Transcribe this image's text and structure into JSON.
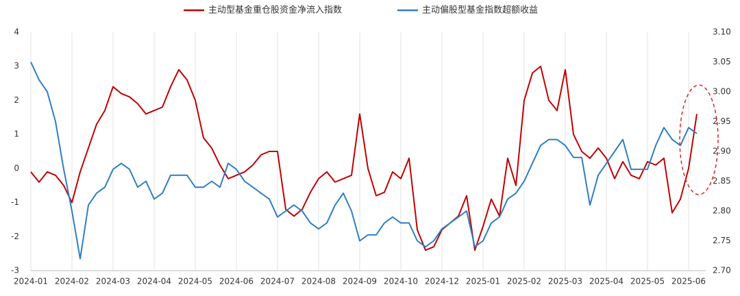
{
  "chart_data": {
    "type": "line",
    "categories": [
      "2024-01",
      null,
      null,
      null,
      null,
      "2024-02",
      null,
      null,
      null,
      null,
      "2024-03",
      null,
      null,
      null,
      null,
      "2024-04",
      null,
      null,
      null,
      null,
      "2024-05",
      null,
      null,
      null,
      null,
      "2024-06",
      null,
      null,
      null,
      null,
      "2024-07",
      null,
      null,
      null,
      null,
      "2024-08",
      null,
      null,
      null,
      null,
      "2024-09",
      null,
      null,
      null,
      null,
      "2024-10",
      null,
      null,
      null,
      null,
      "2024-12",
      null,
      null,
      null,
      null,
      "2025-01",
      null,
      null,
      null,
      null,
      "2025-02",
      null,
      null,
      null,
      null,
      "2025-03",
      null,
      null,
      null,
      null,
      "2025-04",
      null,
      null,
      null,
      null,
      "2025-05",
      null,
      null,
      null,
      null,
      "2025-06",
      null
    ],
    "series": [
      {
        "name": "主动型基金重仓股资金净流入指数",
        "color": "#c00000",
        "axis": "y",
        "values": [
          -0.1,
          -0.4,
          -0.1,
          -0.2,
          -0.5,
          -1.0,
          -0.1,
          0.6,
          1.3,
          1.7,
          2.4,
          2.2,
          2.1,
          1.9,
          1.6,
          1.7,
          1.8,
          2.4,
          2.9,
          2.6,
          2.0,
          0.9,
          0.6,
          0.1,
          -0.3,
          -0.2,
          -0.1,
          0.1,
          0.4,
          0.5,
          0.5,
          -1.2,
          -1.4,
          -1.2,
          -0.7,
          -0.3,
          -0.1,
          -0.4,
          -0.3,
          -0.2,
          1.6,
          0.0,
          -0.8,
          -0.7,
          -0.1,
          -0.3,
          0.3,
          -1.8,
          -2.4,
          -2.3,
          -1.8,
          -1.6,
          -1.4,
          -0.8,
          -2.4,
          -1.7,
          -0.9,
          -1.4,
          0.3,
          -0.5,
          2.0,
          2.8,
          3.0,
          2.0,
          1.7,
          2.9,
          1.0,
          0.5,
          0.3,
          0.6,
          0.3,
          -0.3,
          0.2,
          -0.2,
          -0.3,
          0.2,
          0.1,
          0.3,
          -1.3,
          -0.9,
          0.0,
          1.6
        ]
      },
      {
        "name": "主动偏股型基金指数超额收益",
        "color": "#2e7dc4",
        "axis": "y2",
        "values": [
          3.05,
          3.02,
          3.0,
          2.95,
          2.87,
          2.8,
          2.72,
          2.81,
          2.83,
          2.84,
          2.87,
          2.88,
          2.87,
          2.84,
          2.85,
          2.82,
          2.83,
          2.86,
          2.86,
          2.86,
          2.84,
          2.84,
          2.85,
          2.84,
          2.88,
          2.87,
          2.85,
          2.84,
          2.83,
          2.82,
          2.79,
          2.8,
          2.81,
          2.8,
          2.78,
          2.77,
          2.78,
          2.81,
          2.83,
          2.8,
          2.75,
          2.76,
          2.76,
          2.78,
          2.79,
          2.78,
          2.78,
          2.75,
          2.74,
          2.75,
          2.77,
          2.78,
          2.79,
          2.8,
          2.74,
          2.75,
          2.78,
          2.79,
          2.82,
          2.83,
          2.85,
          2.88,
          2.91,
          2.92,
          2.92,
          2.91,
          2.89,
          2.89,
          2.81,
          2.86,
          2.88,
          2.9,
          2.92,
          2.87,
          2.87,
          2.87,
          2.91,
          2.94,
          2.92,
          2.91,
          2.94,
          2.93
        ]
      }
    ],
    "ylim": [
      -3,
      4
    ],
    "yticks": [
      -3,
      -2,
      -1,
      0,
      1,
      2,
      3,
      4
    ],
    "y2lim": [
      2.7,
      3.1
    ],
    "y2ticks": [
      {
        "value": 2.7,
        "label": "2.70"
      },
      2.75,
      {
        "value": 2.8,
        "label": "2.80"
      },
      2.85,
      {
        "value": 2.9,
        "label": "2.90"
      },
      2.95,
      {
        "value": 3.0,
        "label": "3.00"
      },
      3.05,
      {
        "value": 3.1,
        "label": "3.10"
      }
    ],
    "grid": true,
    "legend": "top"
  }
}
